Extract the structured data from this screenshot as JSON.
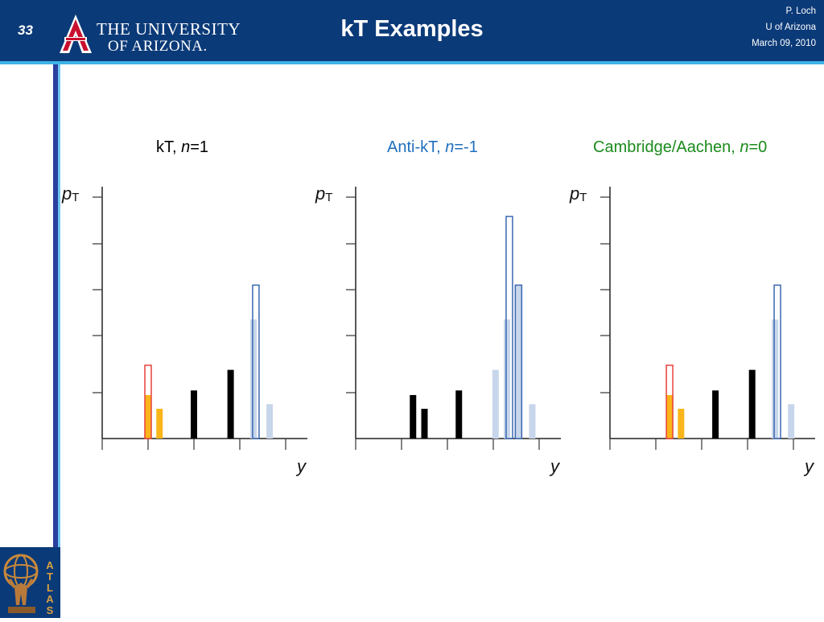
{
  "header": {
    "slide_number": "33",
    "university_line1": "THE UNIVERSITY",
    "university_line2": "OF ARIZONA.",
    "title": "kT Examples",
    "author": "P. Loch",
    "affiliation": "U of Arizona",
    "date": "March 09, 2010"
  },
  "atlas_logo_text": "ATLAS",
  "colors": {
    "header_bg": "#0b3a78",
    "accent_line": "#3fb3e6",
    "panel1_title": "#000000",
    "panel2_title": "#1f6fbf",
    "panel3_title": "#1b8a1b",
    "orange": "#f9b51a",
    "red_outline": "#e8403a",
    "blue_outline": "#3a67b0",
    "light_blue": "#c7d6ea"
  },
  "panels": [
    {
      "title_prefix": "kT, ",
      "title_var": "n",
      "title_suffix": "=1"
    },
    {
      "title_prefix": "Anti-kT, ",
      "title_var": "n",
      "title_suffix": "=-1"
    },
    {
      "title_prefix": "Cambridge/Aachen, ",
      "title_var": "n",
      "title_suffix": "=0"
    }
  ],
  "chart_data": [
    {
      "type": "bar",
      "title": "kT, n=1",
      "ylabel": "pT",
      "xlabel": "y",
      "ylim": [
        0,
        5.5
      ],
      "bars": [
        {
          "x": 1.0,
          "value": 0.95,
          "color": "orange"
        },
        {
          "x": 1.25,
          "value": 0.65,
          "color": "orange"
        },
        {
          "x": 1.0,
          "value": 1.6,
          "color": "red_outline"
        },
        {
          "x": 2.0,
          "value": 1.05,
          "color": "black"
        },
        {
          "x": 2.8,
          "value": 1.5,
          "color": "black"
        },
        {
          "x": 3.3,
          "value": 2.6,
          "color": "light_blue"
        },
        {
          "x": 3.35,
          "value": 3.35,
          "color": "blue_outline"
        },
        {
          "x": 3.65,
          "value": 0.75,
          "color": "light_blue"
        }
      ]
    },
    {
      "type": "bar",
      "title": "Anti-kT, n=-1",
      "ylabel": "pT",
      "xlabel": "y",
      "ylim": [
        0,
        5.5
      ],
      "bars": [
        {
          "x": 1.25,
          "value": 0.95,
          "color": "black"
        },
        {
          "x": 1.5,
          "value": 0.65,
          "color": "black"
        },
        {
          "x": 2.25,
          "value": 1.05,
          "color": "black"
        },
        {
          "x": 3.05,
          "value": 1.5,
          "color": "light_blue"
        },
        {
          "x": 3.3,
          "value": 2.6,
          "color": "light_blue"
        },
        {
          "x": 3.35,
          "value": 4.85,
          "color": "blue_outline"
        },
        {
          "x": 3.55,
          "value": 3.35,
          "color": "blue_outline_filled"
        },
        {
          "x": 3.85,
          "value": 0.75,
          "color": "light_blue"
        }
      ]
    },
    {
      "type": "bar",
      "title": "Cambridge/Aachen, n=0",
      "ylabel": "pT",
      "xlabel": "y",
      "ylim": [
        0,
        5.5
      ],
      "bars": [
        {
          "x": 1.3,
          "value": 0.95,
          "color": "orange"
        },
        {
          "x": 1.55,
          "value": 0.65,
          "color": "orange"
        },
        {
          "x": 1.3,
          "value": 1.6,
          "color": "red_outline"
        },
        {
          "x": 2.3,
          "value": 1.05,
          "color": "black"
        },
        {
          "x": 3.1,
          "value": 1.5,
          "color": "black"
        },
        {
          "x": 3.6,
          "value": 2.6,
          "color": "light_blue"
        },
        {
          "x": 3.65,
          "value": 3.35,
          "color": "blue_outline"
        },
        {
          "x": 3.95,
          "value": 0.75,
          "color": "light_blue"
        }
      ]
    }
  ]
}
